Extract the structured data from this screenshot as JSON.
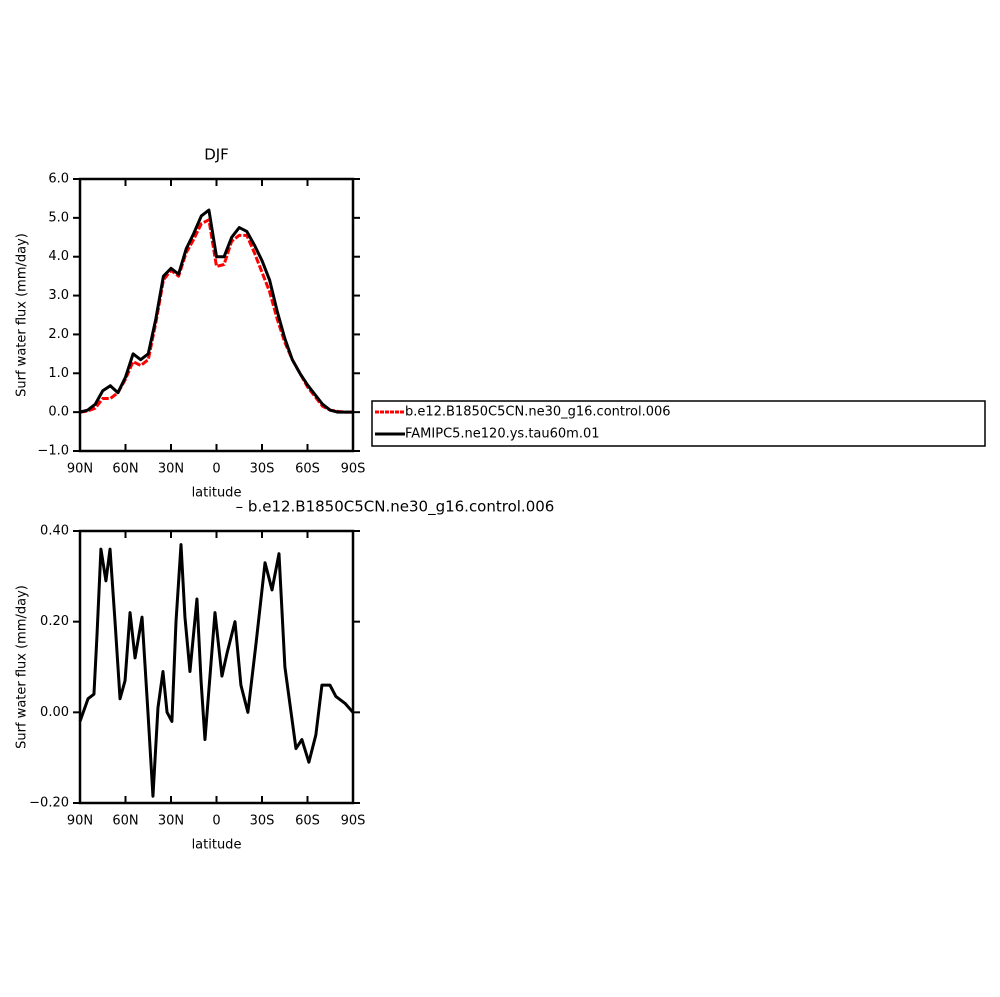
{
  "chart_data": [
    {
      "type": "line",
      "title": "DJF",
      "xlabel": "latitude",
      "ylabel": "Surf water flux (mm/day)",
      "xlim": [
        90,
        -90
      ],
      "xticks": [
        {
          "value": 90,
          "label": "90N"
        },
        {
          "value": 60,
          "label": "60N"
        },
        {
          "value": 30,
          "label": "30N"
        },
        0,
        {
          "value": -30,
          "label": "30S"
        },
        {
          "value": -60,
          "label": "60S"
        },
        {
          "value": -90,
          "label": "90S"
        }
      ],
      "ylim": [
        -1,
        6
      ],
      "yticks": [
        {
          "value": -1,
          "label": "−1.0"
        },
        {
          "value": 0,
          "label": "0.0"
        },
        {
          "value": 1,
          "label": "1.0"
        },
        {
          "value": 2,
          "label": "2.0"
        },
        {
          "value": 3,
          "label": "3.0"
        },
        {
          "value": 4,
          "label": "4.0"
        },
        {
          "value": 5,
          "label": "5.0"
        },
        {
          "value": 6,
          "label": "6.0"
        }
      ],
      "x": [
        90,
        85,
        80,
        75,
        70,
        65,
        60,
        55,
        50,
        45,
        40,
        35,
        30,
        25,
        20,
        15,
        10,
        5,
        0,
        -5,
        -10,
        -15,
        -20,
        -25,
        -30,
        -35,
        -40,
        -45,
        -50,
        -55,
        -60,
        -65,
        -70,
        -75,
        -80,
        -85,
        -90
      ],
      "series": [
        {
          "name": "b.e12.B1850C5CN.ne30_g16.control.006",
          "color": "#ff0000",
          "dashed": true,
          "values": [
            0,
            0.03,
            0.1,
            0.35,
            0.35,
            0.5,
            0.85,
            1.3,
            1.2,
            1.35,
            2.3,
            3.4,
            3.65,
            3.5,
            4.1,
            4.45,
            4.85,
            4.95,
            3.75,
            3.8,
            4.4,
            4.55,
            4.55,
            4.1,
            3.6,
            3.1,
            2.4,
            1.8,
            1.35,
            1.0,
            0.65,
            0.4,
            0.15,
            0.05,
            0.02,
            0,
            0
          ]
        },
        {
          "name": "FAMIPC5.ne120.ys.tau60m.01",
          "color": "#000000",
          "dashed": false,
          "values": [
            0,
            0.05,
            0.2,
            0.55,
            0.68,
            0.5,
            0.9,
            1.5,
            1.35,
            1.5,
            2.4,
            3.5,
            3.7,
            3.55,
            4.2,
            4.6,
            5.05,
            5.2,
            4.0,
            4.0,
            4.5,
            4.75,
            4.65,
            4.3,
            3.9,
            3.4,
            2.6,
            1.9,
            1.35,
            1.0,
            0.7,
            0.45,
            0.2,
            0.05,
            0,
            0,
            0
          ]
        }
      ]
    },
    {
      "type": "line",
      "title": "– b.e12.B1850C5CN.ne30_g16.control.006",
      "xlabel": "latitude",
      "ylabel": "Surf water flux (mm/day)",
      "xlim": [
        90,
        -90
      ],
      "xticks": [
        {
          "value": 90,
          "label": "90N"
        },
        {
          "value": 60,
          "label": "60N"
        },
        {
          "value": 30,
          "label": "30N"
        },
        0,
        {
          "value": -30,
          "label": "30S"
        },
        {
          "value": -60,
          "label": "60S"
        },
        {
          "value": -90,
          "label": "90S"
        }
      ],
      "ylim": [
        -0.2,
        0.4
      ],
      "yticks": [
        {
          "value": -0.2,
          "label": "−0.20"
        },
        {
          "value": 0,
          "label": "0.00"
        },
        {
          "value": 0.2,
          "label": "0.20"
        },
        {
          "value": 0.4,
          "label": "0.40"
        }
      ],
      "color": "#000000",
      "x": [
        90,
        84.7,
        80.8,
        78.8,
        76.2,
        72.9,
        70.2,
        66.9,
        63.6,
        60.3,
        57,
        53.7,
        49.1,
        45.2,
        41.9,
        38.6,
        35.3,
        32.6,
        29.4,
        26.7,
        23.4,
        20.8,
        17.5,
        12.9,
        10.2,
        7.6,
        4.3,
        1,
        -3.6,
        -6.9,
        -12.2,
        -16.1,
        -20.7,
        -26,
        -32,
        -36.6,
        -41.2,
        -45.1,
        -52.4,
        -56.3,
        -60.9,
        -65.5,
        -69.5,
        -74.8,
        -78.7,
        -84.7,
        -90
      ],
      "values": [
        -0.02,
        0.03,
        0.04,
        0.17,
        0.36,
        0.29,
        0.36,
        0.2,
        0.03,
        0.07,
        0.22,
        0.12,
        0.21,
        0.0,
        -0.185,
        0.01,
        0.09,
        0.0,
        -0.02,
        0.2,
        0.37,
        0.21,
        0.09,
        0.25,
        0.07,
        -0.06,
        0.08,
        0.22,
        0.08,
        0.13,
        0.2,
        0.06,
        0.0,
        0.15,
        0.33,
        0.27,
        0.35,
        0.1,
        -0.08,
        -0.06,
        -0.11,
        -0.05,
        0.06,
        0.06,
        0.035,
        0.02,
        0.0
      ]
    }
  ]
}
